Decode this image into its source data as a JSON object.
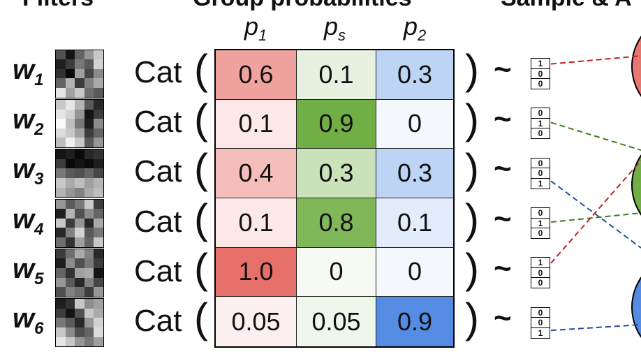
{
  "headers": {
    "filters": "Filters",
    "probs": "Group probabilities",
    "sample": "Sample & A"
  },
  "columns": [
    {
      "base": "p",
      "sub": "1"
    },
    {
      "base": "p",
      "sub": "s"
    },
    {
      "base": "p",
      "sub": "2"
    }
  ],
  "cat_label": "Cat",
  "tilde": "~",
  "paren_open": "(",
  "paren_close": ")",
  "rows": [
    {
      "w": "w",
      "w_sub": "1",
      "values": [
        "0.6",
        "0.1",
        "0.3"
      ],
      "onehot": [
        "1",
        "0",
        "0"
      ]
    },
    {
      "w": "w",
      "w_sub": "2",
      "values": [
        "0.1",
        "0.9",
        "0"
      ],
      "onehot": [
        "0",
        "1",
        "0"
      ]
    },
    {
      "w": "w",
      "w_sub": "3",
      "values": [
        "0.4",
        "0.3",
        "0.3"
      ],
      "onehot": [
        "0",
        "0",
        "1"
      ]
    },
    {
      "w": "w",
      "w_sub": "4",
      "values": [
        "0.1",
        "0.8",
        "0.1"
      ],
      "onehot": [
        "0",
        "1",
        "0"
      ]
    },
    {
      "w": "w",
      "w_sub": "5",
      "values": [
        "1.0",
        "0",
        "0"
      ],
      "onehot": [
        "1",
        "0",
        "0"
      ]
    },
    {
      "w": "w",
      "w_sub": "6",
      "values": [
        "0.05",
        "0.05",
        "0.9"
      ],
      "onehot": [
        "0",
        "0",
        "1"
      ]
    }
  ],
  "colors": {
    "group1": "#e8706a",
    "shared": "#6aaa3c",
    "group2": "#4a86e0",
    "line1": "#c0202a",
    "line_s": "#3f7a1a",
    "line2": "#1f4f98"
  },
  "filter_pixels": [
    [
      80,
      20,
      100,
      150,
      200,
      30,
      60,
      120,
      90,
      210,
      50,
      10,
      160,
      70,
      140,
      100,
      180,
      60,
      130,
      170,
      230,
      160,
      200,
      110,
      90
    ],
    [
      200,
      230,
      180,
      90,
      40,
      230,
      210,
      150,
      20,
      60,
      250,
      190,
      120,
      30,
      140,
      220,
      200,
      160,
      60,
      100,
      190,
      240,
      200,
      90,
      150
    ],
    [
      20,
      30,
      10,
      40,
      50,
      60,
      10,
      20,
      10,
      30,
      120,
      90,
      80,
      100,
      70,
      200,
      170,
      190,
      160,
      180,
      180,
      150,
      130,
      170,
      190
    ],
    [
      150,
      90,
      120,
      200,
      60,
      30,
      180,
      80,
      140,
      100,
      200,
      60,
      150,
      40,
      170,
      40,
      130,
      210,
      90,
      120,
      110,
      50,
      160,
      100,
      200
    ],
    [
      60,
      110,
      170,
      130,
      40,
      30,
      140,
      80,
      120,
      60,
      100,
      50,
      160,
      170,
      20,
      150,
      90,
      40,
      130,
      70,
      80,
      130,
      110,
      60,
      150
    ],
    [
      30,
      50,
      200,
      140,
      160,
      60,
      20,
      80,
      200,
      170,
      120,
      90,
      40,
      150,
      210,
      200,
      140,
      80,
      100,
      220,
      230,
      200,
      150,
      120,
      160
    ]
  ]
}
